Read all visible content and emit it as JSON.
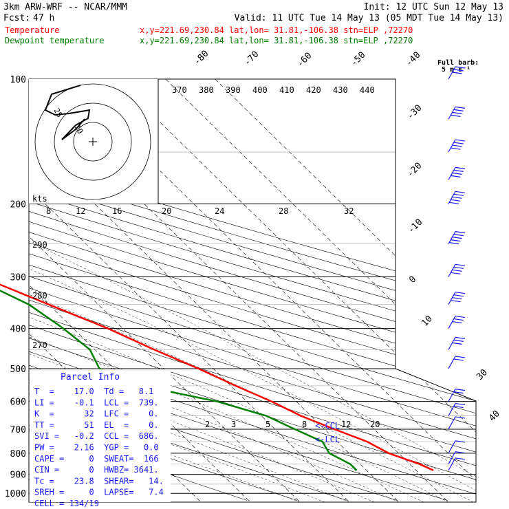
{
  "header": {
    "model": "3km ARW-WRF -- NCAR/MMM",
    "init": "Init: 12 UTC Sun 12 May 13",
    "fcst_label": "Fcst:",
    "fcst_value": "47 h",
    "valid": "Valid: 11 UTC Tue 14 May 13 (05 MDT Tue 14 May 13)",
    "temp_label": "Temperature",
    "dew_label": "Dewpoint temperature",
    "temp_info": "x,y=221.69,230.84   lat,lon= 31.81,-106.38   stn=ELP ,72270",
    "dew_info": "x,y=221.69,230.84   lat,lon= 31.81,-106.38   stn=ELP ,72270",
    "barb_note_line1": "Full barb:",
    "barb_note_line2": "5 m s⁻¹"
  },
  "colors": {
    "temperature": "#ff0000",
    "dewpoint": "#008000",
    "barbs": "#1a1aff",
    "grid": "#000000",
    "header_red": "#ff0000",
    "header_green": "#008000"
  },
  "chart_data": {
    "type": "line",
    "title": "",
    "pressure_levels": [
      "100",
      "200",
      "300",
      "400",
      "500",
      "600",
      "700",
      "800",
      "900",
      "1000"
    ],
    "temp_axis_labels": [
      "-80",
      "-70",
      "-60",
      "-50",
      "-40",
      "-30",
      "-20",
      "-10",
      "0",
      "10",
      "20",
      "30",
      "40"
    ],
    "theta_labels": [
      "370",
      "380",
      "390",
      "400",
      "410",
      "420",
      "430",
      "440"
    ],
    "hodo_speed_labels": [
      "kts",
      "8",
      "12",
      "16",
      "20",
      "24",
      "28",
      "32"
    ],
    "mixing_ratio_labels": [
      "2",
      "3",
      "5",
      "8",
      "12",
      "20"
    ],
    "theta_left_labels": [
      "290",
      "280",
      "270"
    ],
    "hodograph_ring_labels": [
      "25",
      "10"
    ],
    "lcl_labels": [
      "<-CCL",
      "<-LCL"
    ],
    "series": [
      {
        "name": "Temperature",
        "points": [
          [
            880,
            23.5
          ],
          [
            850,
            22
          ],
          [
            800,
            18
          ],
          [
            750,
            16
          ],
          [
            700,
            12
          ],
          [
            650,
            8
          ],
          [
            600,
            5
          ],
          [
            550,
            1
          ],
          [
            500,
            -3
          ],
          [
            450,
            -8
          ],
          [
            400,
            -13
          ],
          [
            350,
            -20
          ],
          [
            300,
            -28
          ],
          [
            275,
            -32
          ],
          [
            250,
            -36
          ],
          [
            225,
            -40
          ],
          [
            200,
            -44
          ],
          [
            175,
            -48
          ],
          [
            150,
            -53
          ],
          [
            130,
            -56
          ],
          [
            115,
            -58
          ],
          [
            100,
            -64
          ]
        ]
      },
      {
        "name": "Dewpoint temperature",
        "points": [
          [
            880,
            8
          ],
          [
            850,
            8
          ],
          [
            800,
            6
          ],
          [
            750,
            7
          ],
          [
            700,
            4
          ],
          [
            650,
            1
          ],
          [
            600,
            -6
          ],
          [
            550,
            -18
          ],
          [
            500,
            -23
          ],
          [
            450,
            -21
          ],
          [
            400,
            -22
          ],
          [
            350,
            -24
          ],
          [
            300,
            -30
          ],
          [
            275,
            -36
          ],
          [
            250,
            -52
          ],
          [
            225,
            -64
          ],
          [
            200,
            -68
          ],
          [
            175,
            -70
          ],
          [
            150,
            -74
          ],
          [
            125,
            -78
          ],
          [
            100,
            -85
          ]
        ]
      }
    ],
    "wind_barbs": [
      {
        "p": 880,
        "speed": 3
      },
      {
        "p": 850,
        "speed": 4
      },
      {
        "p": 800,
        "speed": 4
      },
      {
        "p": 700,
        "speed": 6
      },
      {
        "p": 650,
        "speed": 8
      },
      {
        "p": 600,
        "speed": 10
      },
      {
        "p": 500,
        "speed": 12
      },
      {
        "p": 450,
        "speed": 15
      },
      {
        "p": 400,
        "speed": 17
      },
      {
        "p": 350,
        "speed": 20
      },
      {
        "p": 300,
        "speed": 22
      },
      {
        "p": 250,
        "speed": 25
      },
      {
        "p": 200,
        "speed": 25
      },
      {
        "p": 175,
        "speed": 22
      },
      {
        "p": 150,
        "speed": 20
      },
      {
        "p": 125,
        "speed": 18
      },
      {
        "p": 100,
        "speed": 15
      }
    ]
  },
  "parcel_info": {
    "title": "Parcel Info",
    "rows": [
      "T  =    17.0  Td =   8.1",
      "LI =    -0.1  LCL =  739.",
      "K  =      32  LFC =    0.",
      "TT =      51  EL  =    0.",
      "SVI =   -0.2  CCL =  686.",
      "PW =    2.16  YGP =   0.0",
      "CAPE =     0  SWEAT=  166",
      "CIN =      0  HWBZ= 3641.",
      "Tc =    23.8  SHEAR=   14.",
      "SREH =     0  LAPSE=   7.4",
      "CELL = 134/19"
    ]
  }
}
